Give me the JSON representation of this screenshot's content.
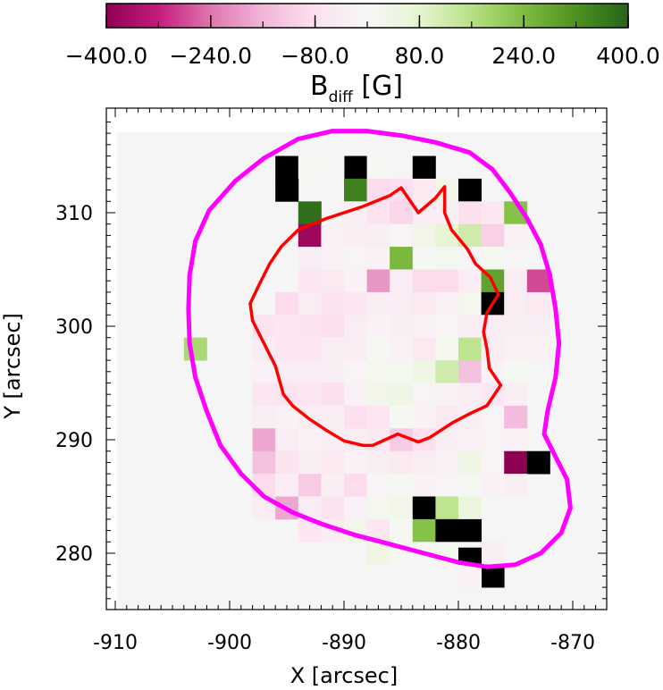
{
  "chart_data": {
    "type": "heatmap",
    "colorbar": {
      "title_main": "B",
      "title_sub": "diff",
      "title_unit": " [G]",
      "range": [
        -400,
        400
      ],
      "ticks": [
        -400,
        -240,
        -80,
        80,
        240,
        400
      ],
      "tick_labels": [
        "−400.0",
        "−240.0",
        "−80.0",
        "80.0",
        "240.0",
        "400.0"
      ],
      "colors": [
        "#8e0152",
        "#c51b7d",
        "#de77ae",
        "#f1b6da",
        "#fde0ef",
        "#f7f7f7",
        "#e6f5d0",
        "#b8e186",
        "#7fbc41",
        "#4d9221",
        "#276419"
      ]
    },
    "xlabel": "X [arcsec]",
    "ylabel": "Y [arcsec]",
    "xlim": [
      -912,
      -868
    ],
    "ylim": [
      275,
      318
    ],
    "xticks": [
      -910,
      -900,
      -890,
      -880,
      -870
    ],
    "yticks": [
      280,
      290,
      300,
      310
    ],
    "background_color": "#f5f5f5",
    "grid": false,
    "cell_size": 2,
    "cells": [
      [
        -895,
        314,
        9999
      ],
      [
        -889,
        314,
        9999
      ],
      [
        -883,
        314,
        9999
      ],
      [
        -893,
        314,
        10
      ],
      [
        -891,
        314,
        5
      ],
      [
        -887,
        314,
        10
      ],
      [
        -895,
        312,
        9999
      ],
      [
        -889,
        312,
        350
      ],
      [
        -887,
        312,
        -90
      ],
      [
        -885,
        312,
        -80
      ],
      [
        -883,
        312,
        -50
      ],
      [
        -881,
        312,
        30
      ],
      [
        -879,
        312,
        9999
      ],
      [
        -893,
        310,
        380
      ],
      [
        -889,
        310,
        -30
      ],
      [
        -887,
        310,
        -70
      ],
      [
        -885,
        310,
        -100
      ],
      [
        -883,
        310,
        -40
      ],
      [
        -881,
        310,
        -30
      ],
      [
        -879,
        310,
        -80
      ],
      [
        -877,
        310,
        -60
      ],
      [
        -875,
        310,
        230
      ],
      [
        -893,
        308,
        -380
      ],
      [
        -891,
        308,
        -20
      ],
      [
        -889,
        308,
        -40
      ],
      [
        -887,
        308,
        -30
      ],
      [
        -885,
        308,
        -10
      ],
      [
        -883,
        308,
        30
      ],
      [
        -881,
        308,
        70
      ],
      [
        -879,
        308,
        120
      ],
      [
        -877,
        308,
        -110
      ],
      [
        -875,
        308,
        -20
      ],
      [
        -893,
        306,
        -30
      ],
      [
        -891,
        306,
        -20
      ],
      [
        -889,
        306,
        -10
      ],
      [
        -887,
        306,
        -20
      ],
      [
        -885,
        306,
        250
      ],
      [
        -883,
        306,
        10
      ],
      [
        -881,
        306,
        20
      ],
      [
        -879,
        306,
        -10
      ],
      [
        -877,
        306,
        20
      ],
      [
        -875,
        306,
        -10
      ],
      [
        -893,
        304,
        -60
      ],
      [
        -891,
        304,
        -50
      ],
      [
        -889,
        304,
        -20
      ],
      [
        -887,
        304,
        -200
      ],
      [
        -885,
        304,
        -40
      ],
      [
        -883,
        304,
        -90
      ],
      [
        -881,
        304,
        -90
      ],
      [
        -879,
        304,
        -40
      ],
      [
        -877,
        304,
        290
      ],
      [
        -875,
        304,
        -40
      ],
      [
        -873,
        304,
        -280
      ],
      [
        -895,
        302,
        -90
      ],
      [
        -893,
        302,
        -40
      ],
      [
        -891,
        302,
        -70
      ],
      [
        -889,
        302,
        -60
      ],
      [
        -887,
        302,
        -30
      ],
      [
        -885,
        302,
        -40
      ],
      [
        -883,
        302,
        -50
      ],
      [
        -881,
        302,
        -20
      ],
      [
        -879,
        302,
        20
      ],
      [
        -877,
        302,
        9999
      ],
      [
        -875,
        302,
        -40
      ],
      [
        -873,
        302,
        -50
      ],
      [
        -897,
        300,
        -70
      ],
      [
        -895,
        300,
        -60
      ],
      [
        -893,
        300,
        -70
      ],
      [
        -891,
        300,
        -80
      ],
      [
        -889,
        300,
        -40
      ],
      [
        -887,
        300,
        -20
      ],
      [
        -885,
        300,
        -30
      ],
      [
        -883,
        300,
        -20
      ],
      [
        -881,
        300,
        -10
      ],
      [
        -879,
        300,
        -30
      ],
      [
        -877,
        300,
        -40
      ],
      [
        -875,
        300,
        -30
      ],
      [
        -873,
        300,
        -30
      ],
      [
        -903,
        298,
        180
      ],
      [
        -897,
        298,
        -40
      ],
      [
        -895,
        298,
        -60
      ],
      [
        -893,
        298,
        -60
      ],
      [
        -891,
        298,
        -30
      ],
      [
        -889,
        298,
        -40
      ],
      [
        -887,
        298,
        10
      ],
      [
        -885,
        298,
        -20
      ],
      [
        -883,
        298,
        -50
      ],
      [
        -881,
        298,
        20
      ],
      [
        -879,
        298,
        150
      ],
      [
        -877,
        298,
        -40
      ],
      [
        -875,
        298,
        -20
      ],
      [
        -873,
        298,
        -20
      ],
      [
        -897,
        296,
        -20
      ],
      [
        -895,
        296,
        -40
      ],
      [
        -893,
        296,
        -30
      ],
      [
        -891,
        296,
        -30
      ],
      [
        -889,
        296,
        -10
      ],
      [
        -887,
        296,
        20
      ],
      [
        -885,
        296,
        20
      ],
      [
        -883,
        296,
        40
      ],
      [
        -881,
        296,
        120
      ],
      [
        -879,
        296,
        -140
      ],
      [
        -877,
        296,
        -20
      ],
      [
        -875,
        296,
        10
      ],
      [
        -897,
        294,
        -60
      ],
      [
        -895,
        294,
        -70
      ],
      [
        -893,
        294,
        -60
      ],
      [
        -891,
        294,
        -80
      ],
      [
        -889,
        294,
        -20
      ],
      [
        -887,
        294,
        30
      ],
      [
        -885,
        294,
        40
      ],
      [
        -883,
        294,
        -10
      ],
      [
        -881,
        294,
        -20
      ],
      [
        -879,
        294,
        -40
      ],
      [
        -877,
        294,
        -60
      ],
      [
        -875,
        294,
        -30
      ],
      [
        -897,
        292,
        -30
      ],
      [
        -895,
        292,
        -20
      ],
      [
        -893,
        292,
        -40
      ],
      [
        -891,
        292,
        -30
      ],
      [
        -889,
        292,
        -80
      ],
      [
        -887,
        292,
        -60
      ],
      [
        -885,
        292,
        10
      ],
      [
        -883,
        292,
        -20
      ],
      [
        -881,
        292,
        -50
      ],
      [
        -879,
        292,
        -30
      ],
      [
        -877,
        292,
        -10
      ],
      [
        -875,
        292,
        -150
      ],
      [
        -897,
        290,
        -180
      ],
      [
        -895,
        290,
        -40
      ],
      [
        -893,
        290,
        -20
      ],
      [
        -891,
        290,
        -30
      ],
      [
        -889,
        290,
        -40
      ],
      [
        -887,
        290,
        -50
      ],
      [
        -885,
        290,
        -120
      ],
      [
        -883,
        290,
        -80
      ],
      [
        -881,
        290,
        -30
      ],
      [
        -879,
        290,
        -20
      ],
      [
        -877,
        290,
        -10
      ],
      [
        -875,
        290,
        -20
      ],
      [
        -897,
        288,
        -140
      ],
      [
        -895,
        288,
        -70
      ],
      [
        -893,
        288,
        -30
      ],
      [
        -891,
        288,
        -50
      ],
      [
        -889,
        288,
        -20
      ],
      [
        -887,
        288,
        -30
      ],
      [
        -885,
        288,
        -50
      ],
      [
        -883,
        288,
        -40
      ],
      [
        -881,
        288,
        -20
      ],
      [
        -879,
        288,
        40
      ],
      [
        -877,
        288,
        -10
      ],
      [
        -875,
        288,
        -400
      ],
      [
        -873,
        288,
        9999
      ],
      [
        -897,
        286,
        -90
      ],
      [
        -895,
        286,
        -40
      ],
      [
        -893,
        286,
        -120
      ],
      [
        -891,
        286,
        -30
      ],
      [
        -889,
        286,
        -90
      ],
      [
        -887,
        286,
        -10
      ],
      [
        -885,
        286,
        10
      ],
      [
        -883,
        286,
        -20
      ],
      [
        -881,
        286,
        -10
      ],
      [
        -879,
        286,
        10
      ],
      [
        -877,
        286,
        -20
      ],
      [
        -875,
        286,
        -30
      ],
      [
        -897,
        284,
        -40
      ],
      [
        -895,
        284,
        -180
      ],
      [
        -893,
        284,
        -40
      ],
      [
        -891,
        284,
        -70
      ],
      [
        -889,
        284,
        -20
      ],
      [
        -887,
        284,
        20
      ],
      [
        -885,
        284,
        30
      ],
      [
        -883,
        284,
        9999
      ],
      [
        -881,
        284,
        150
      ],
      [
        -879,
        284,
        50
      ],
      [
        -893,
        282,
        -60
      ],
      [
        -891,
        282,
        -40
      ],
      [
        -889,
        282,
        30
      ],
      [
        -887,
        282,
        -60
      ],
      [
        -885,
        282,
        10
      ],
      [
        -883,
        282,
        230
      ],
      [
        -881,
        282,
        9999
      ],
      [
        -879,
        282,
        9999
      ],
      [
        -887,
        280,
        40
      ],
      [
        -885,
        280,
        10
      ],
      [
        -883,
        280,
        10
      ],
      [
        -881,
        280,
        20
      ],
      [
        -879,
        280,
        10
      ],
      [
        -877,
        280,
        -30
      ],
      [
        -879,
        279.5,
        9999
      ],
      [
        -877,
        278,
        9999
      ],
      [
        -879,
        278,
        -20
      ]
    ],
    "series": [
      {
        "color": "#ff00ff",
        "values": [
          [
            -891,
            317.2
          ],
          [
            -888,
            317.2
          ],
          [
            -885,
            316.8
          ],
          [
            -882,
            316.2
          ],
          [
            -879,
            315.3
          ],
          [
            -877,
            313.8
          ],
          [
            -875.5,
            311.8
          ],
          [
            -874,
            309.5
          ],
          [
            -872.8,
            307.2
          ],
          [
            -872,
            304.5
          ],
          [
            -871.5,
            301.5
          ],
          [
            -871.2,
            298.5
          ],
          [
            -871.5,
            295.5
          ],
          [
            -872.2,
            292.5
          ],
          [
            -872.5,
            290.5
          ],
          [
            -871.5,
            288.5
          ],
          [
            -870.5,
            286.5
          ],
          [
            -870.2,
            284
          ],
          [
            -871,
            281.8
          ],
          [
            -872.8,
            280
          ],
          [
            -875,
            279
          ],
          [
            -877.5,
            278.8
          ],
          [
            -880,
            279.2
          ],
          [
            -883,
            280
          ],
          [
            -886,
            280.8
          ],
          [
            -889,
            281.6
          ],
          [
            -892,
            282.6
          ],
          [
            -894.5,
            283.6
          ],
          [
            -897,
            285
          ],
          [
            -899,
            287
          ],
          [
            -900.8,
            289.5
          ],
          [
            -902,
            292.5
          ],
          [
            -903,
            295.5
          ],
          [
            -903.5,
            298.5
          ],
          [
            -903.6,
            301.5
          ],
          [
            -903.5,
            304.5
          ],
          [
            -903,
            307.5
          ],
          [
            -901.8,
            310.2
          ],
          [
            -899.5,
            312.8
          ],
          [
            -897,
            314.8
          ],
          [
            -894,
            316.5
          ],
          [
            -891,
            317.2
          ]
        ]
      },
      {
        "color": "#ff0000",
        "values": [
          [
            -885,
            312.2
          ],
          [
            -883.5,
            310
          ],
          [
            -882,
            311.3
          ],
          [
            -881.2,
            312.3
          ],
          [
            -881.2,
            310
          ],
          [
            -880.6,
            308.5
          ],
          [
            -879.2,
            306.8
          ],
          [
            -878.5,
            305.5
          ],
          [
            -877.2,
            304.3
          ],
          [
            -876.5,
            302.8
          ],
          [
            -877.5,
            301.2
          ],
          [
            -877.8,
            299.5
          ],
          [
            -877.5,
            298
          ],
          [
            -877.3,
            296.3
          ],
          [
            -876.3,
            294.8
          ],
          [
            -877.5,
            293
          ],
          [
            -879,
            292.3
          ],
          [
            -880.5,
            291.5
          ],
          [
            -882.5,
            290.2
          ],
          [
            -883.5,
            289.8
          ],
          [
            -885.3,
            290.5
          ],
          [
            -887.5,
            289.5
          ],
          [
            -888.3,
            289.5
          ],
          [
            -890,
            289.9
          ],
          [
            -891.5,
            290.8
          ],
          [
            -893,
            291.8
          ],
          [
            -894.5,
            293
          ],
          [
            -895.3,
            294
          ],
          [
            -896,
            296.5
          ],
          [
            -897,
            298.5
          ],
          [
            -898,
            300.5
          ],
          [
            -898.2,
            302
          ],
          [
            -897.5,
            303.5
          ],
          [
            -896.5,
            305.5
          ],
          [
            -895.5,
            307
          ],
          [
            -894,
            308.5
          ],
          [
            -891.5,
            309.5
          ],
          [
            -888.5,
            310.5
          ],
          [
            -886,
            311.5
          ],
          [
            -885,
            312.2
          ]
        ]
      }
    ]
  }
}
